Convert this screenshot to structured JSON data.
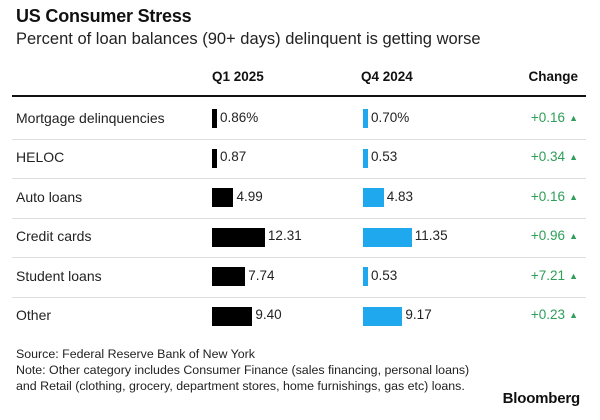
{
  "chart_data": {
    "type": "table",
    "title": "US Consumer Stress",
    "subtitle": "Percent of loan balances (90+ days) delinquent is getting worse",
    "columns": {
      "q1": "Q1 2025",
      "q4": "Q4 2024",
      "change": "Change"
    },
    "rows": [
      {
        "label": "Mortgage delinquencies",
        "q1": 0.86,
        "q1_text": "0.86%",
        "q4": 0.7,
        "q4_text": "0.70%",
        "change": "+0.16"
      },
      {
        "label": "HELOC",
        "q1": 0.87,
        "q1_text": "0.87",
        "q4": 0.53,
        "q4_text": "0.53",
        "change": "+0.34"
      },
      {
        "label": "Auto loans",
        "q1": 4.99,
        "q1_text": "4.99",
        "q4": 4.83,
        "q4_text": "4.83",
        "change": "+0.16"
      },
      {
        "label": "Credit cards",
        "q1": 12.31,
        "q1_text": "12.31",
        "q4": 11.35,
        "q4_text": "11.35",
        "change": "+0.96"
      },
      {
        "label": "Student loans",
        "q1": 7.74,
        "q1_text": "7.74",
        "q4": 0.53,
        "q4_text": "0.53",
        "change": "+7.21"
      },
      {
        "label": "Other",
        "q1": 9.4,
        "q1_text": "9.40",
        "q4": 9.17,
        "q4_text": "9.17",
        "change": "+0.23"
      }
    ],
    "change_direction": "up",
    "source": "Source: Federal Reserve Bank of New York",
    "note": "Note: Other category includes Consumer Finance (sales financing, personal loans) and Retail (clothing, grocery, department stores, home furnishings, gas etc) loans.",
    "brand": "Bloomberg"
  },
  "colors": {
    "q1_bar": "#000000",
    "q4_bar": "#1fa8ee",
    "positive_change": "#2e9e58"
  }
}
